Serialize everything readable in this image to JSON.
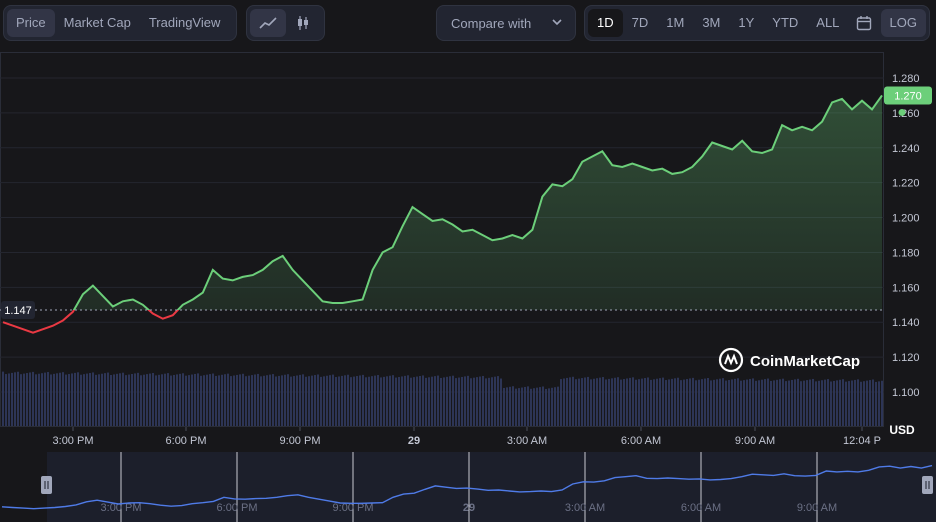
{
  "toolbar": {
    "metric_tabs": [
      "Price",
      "Market Cap",
      "TradingView"
    ],
    "active_metric": "Price",
    "chart_type_icons": [
      "line-chart-icon",
      "candlestick-icon"
    ],
    "compare_label": "Compare with",
    "ranges": [
      "1D",
      "7D",
      "1M",
      "3M",
      "1Y",
      "YTD",
      "ALL"
    ],
    "active_range": "1D",
    "calendar_icon": "calendar-icon",
    "log_label": "LOG"
  },
  "watermark": "CoinMarketCap",
  "colors": {
    "up": "#6ccf7a",
    "down": "#ea3943",
    "volume": "#313a5c",
    "navigator_line": "#4f7be8",
    "price_badge": "#6ccf7a"
  },
  "chart_data": {
    "type": "line",
    "y_unit": "USD",
    "y_ticks": [
      "1.280",
      "1.260",
      "1.240",
      "1.220",
      "1.200",
      "1.180",
      "1.160",
      "1.140",
      "1.120",
      "1.100"
    ],
    "ylim": [
      1.1,
      1.28
    ],
    "x_ticks": [
      "3:00 PM",
      "6:00 PM",
      "9:00 PM",
      "29",
      "3:00 AM",
      "6:00 AM",
      "9:00 AM",
      "12:04 P"
    ],
    "open_price_label": "1.147",
    "open_price": 1.147,
    "current_price_label": "1.270",
    "current_price": 1.27,
    "grid": true,
    "series": [
      {
        "values": [
          1.14,
          1.138,
          1.136,
          1.134,
          1.136,
          1.138,
          1.141,
          1.146,
          1.156,
          1.161,
          1.155,
          1.149,
          1.152,
          1.153,
          1.15,
          1.145,
          1.142,
          1.144,
          1.15,
          1.153,
          1.157,
          1.17,
          1.165,
          1.164,
          1.166,
          1.167,
          1.17,
          1.175,
          1.178,
          1.17,
          1.164,
          1.158,
          1.152,
          1.151,
          1.151,
          1.152,
          1.153,
          1.17,
          1.18,
          1.183,
          1.195,
          1.206,
          1.202,
          1.198,
          1.199,
          1.196,
          1.192,
          1.193,
          1.19,
          1.187,
          1.188,
          1.19,
          1.188,
          1.193,
          1.212,
          1.219,
          1.218,
          1.222,
          1.232,
          1.235,
          1.238,
          1.23,
          1.229,
          1.231,
          1.229,
          1.227,
          1.228,
          1.225,
          1.226,
          1.229,
          1.235,
          1.243,
          1.241,
          1.239,
          1.244,
          1.238,
          1.237,
          1.239,
          1.253,
          1.25,
          1.252,
          1.25,
          1.255,
          1.266,
          1.268,
          1.262,
          1.267,
          1.262,
          1.27
        ]
      }
    ]
  },
  "navigator": {
    "x_ticks": [
      "3:00 PM",
      "6:00 PM",
      "9:00 PM",
      "29",
      "3:00 AM",
      "6:00 AM",
      "9:00 AM"
    ],
    "handle_icon": "drag-handle-icon"
  }
}
